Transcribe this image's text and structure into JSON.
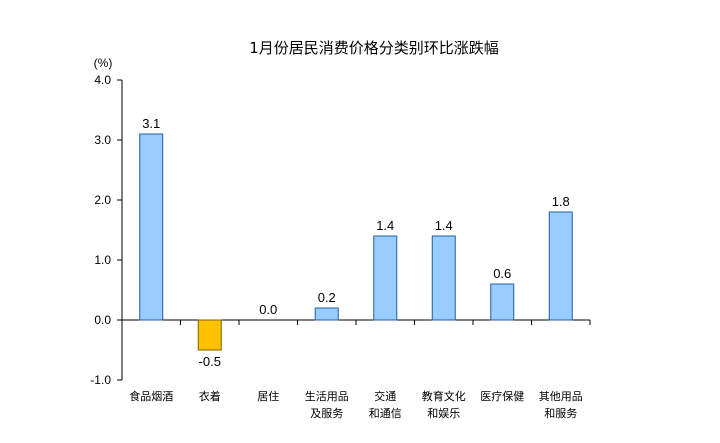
{
  "chart_data": {
    "type": "bar",
    "title": "1月份居民消费价格分类别环比涨跌幅",
    "unit_label": "(%)",
    "categories": [
      [
        "食品烟酒"
      ],
      [
        "衣着"
      ],
      [
        "居住"
      ],
      [
        "生活用品",
        "及服务"
      ],
      [
        "交通",
        "和通信"
      ],
      [
        "教育文化",
        "和娱乐"
      ],
      [
        "医疗保健"
      ],
      [
        "其他用品",
        "和服务"
      ]
    ],
    "values": [
      3.1,
      -0.5,
      0.0,
      0.2,
      1.4,
      1.4,
      0.6,
      1.8
    ],
    "data_labels": [
      "3.1",
      "-0.5",
      "0.0",
      "0.2",
      "1.4",
      "1.4",
      "0.6",
      "1.8"
    ],
    "ylim": [
      -1.0,
      4.0
    ],
    "yticks": [
      "-1.0",
      "0.0",
      "1.0",
      "2.0",
      "3.0",
      "4.0"
    ],
    "ytick_values": [
      -1.0,
      0.0,
      1.0,
      2.0,
      3.0,
      4.0
    ],
    "colors": {
      "positive_fill": "#99CCFF",
      "positive_stroke": "#1F5FA8",
      "negative_fill": "#FFC000",
      "negative_stroke": "#7F6000",
      "axis": "#000000"
    },
    "grid": false,
    "legend": "none"
  }
}
